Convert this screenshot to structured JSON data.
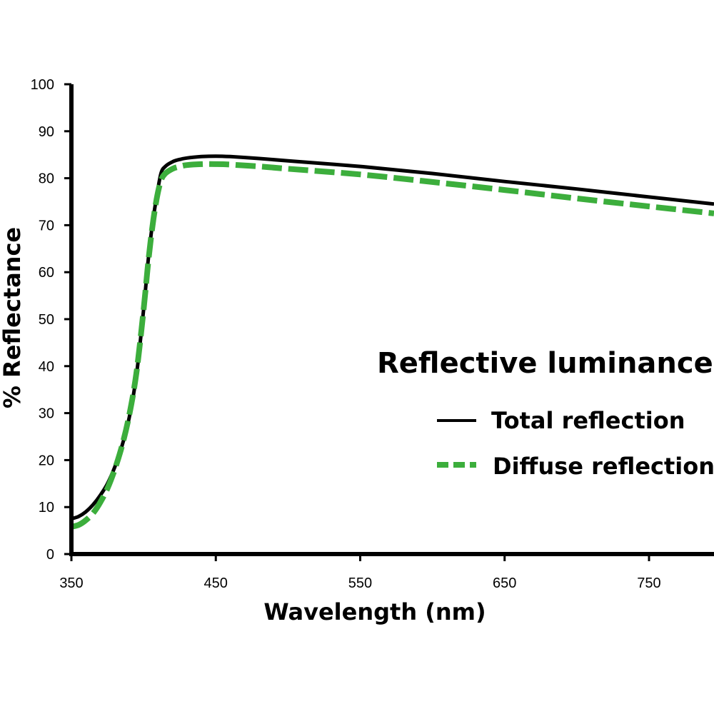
{
  "chart_data": {
    "type": "line",
    "title": "",
    "xlabel": "Wavelength (nm)",
    "ylabel": "% Reflectance",
    "xlim": [
      350,
      795
    ],
    "ylim": [
      0,
      100
    ],
    "xticks": [
      350,
      450,
      550,
      650,
      750
    ],
    "yticks": [
      0,
      10,
      20,
      30,
      40,
      50,
      60,
      70,
      80,
      90,
      100
    ],
    "grid": false,
    "legend": {
      "title": "Reflective luminance",
      "placement": "right"
    },
    "series": [
      {
        "name": "Total reflection",
        "color": "#000000",
        "style": "solid",
        "x": [
          350,
          355,
          360,
          365,
          370,
          375,
          380,
          385,
          390,
          395,
          400,
          403,
          406,
          409,
          412,
          415,
          420,
          425,
          430,
          440,
          450,
          460,
          480,
          500,
          550,
          600,
          650,
          700,
          750,
          795
        ],
        "y": [
          7.5,
          8.0,
          9.0,
          10.5,
          12.5,
          15.0,
          18.5,
          23.0,
          29.0,
          38.0,
          52.0,
          62.0,
          70.0,
          76.0,
          81.0,
          82.5,
          83.5,
          84.0,
          84.3,
          84.6,
          84.7,
          84.6,
          84.2,
          83.7,
          82.5,
          81.0,
          79.3,
          77.7,
          76.0,
          74.5
        ]
      },
      {
        "name": "Diffuse reflection",
        "color": "#3cae3c",
        "style": "dashed",
        "x": [
          350,
          355,
          360,
          365,
          370,
          375,
          380,
          385,
          390,
          395,
          400,
          403,
          406,
          409,
          412,
          415,
          420,
          425,
          430,
          440,
          450,
          460,
          480,
          500,
          550,
          600,
          650,
          700,
          750,
          795
        ],
        "y": [
          5.8,
          6.2,
          7.2,
          8.7,
          11.0,
          14.0,
          18.0,
          23.0,
          29.5,
          38.5,
          52.0,
          61.5,
          69.5,
          75.5,
          79.5,
          81.0,
          82.0,
          82.5,
          82.8,
          83.0,
          83.0,
          82.9,
          82.5,
          82.0,
          80.8,
          79.2,
          77.5,
          75.7,
          74.0,
          72.5
        ]
      }
    ]
  }
}
